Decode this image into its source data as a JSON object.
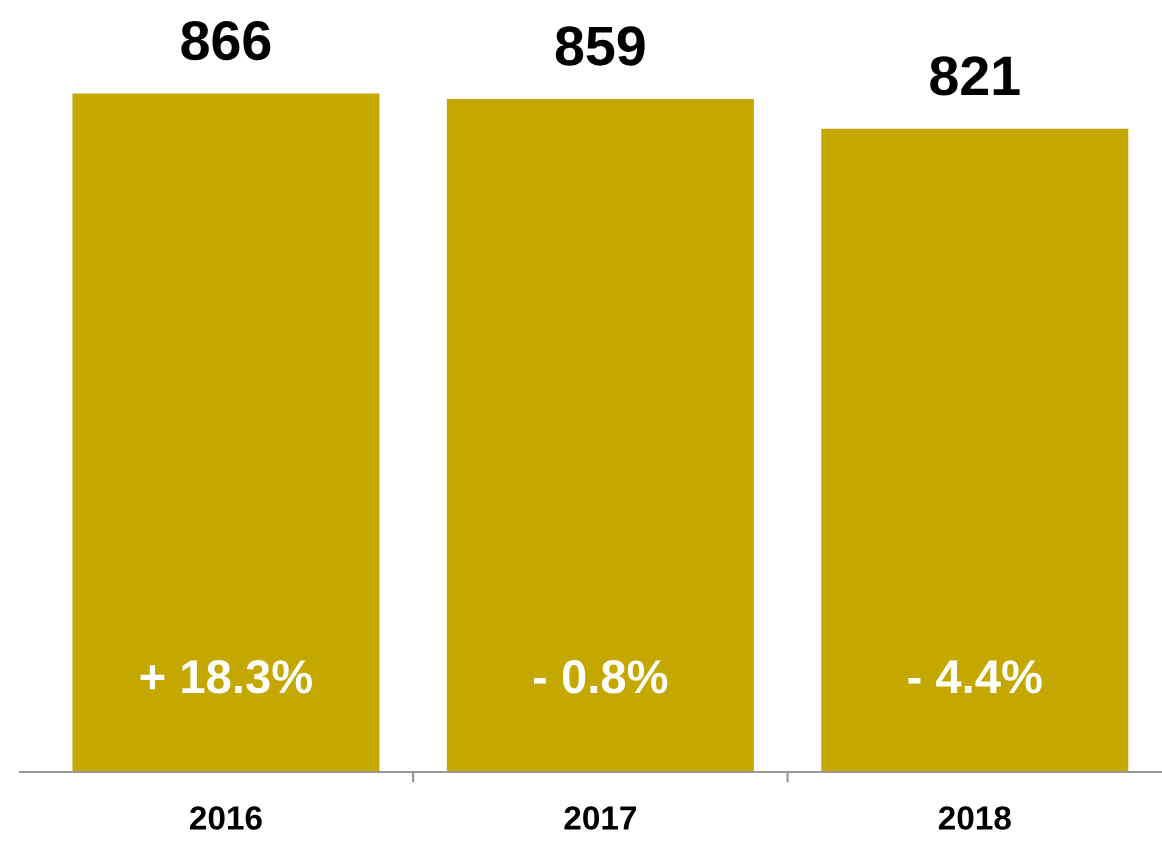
{
  "chart_data": {
    "type": "bar",
    "categories": [
      "2016",
      "2017",
      "2018"
    ],
    "values": [
      866,
      859,
      821
    ],
    "color": "#c4a800",
    "data_labels": true,
    "grid": false,
    "legend": false,
    "annotations": [
      "+ 18.3%",
      "- 0.8%",
      "- 4.4%"
    ]
  }
}
